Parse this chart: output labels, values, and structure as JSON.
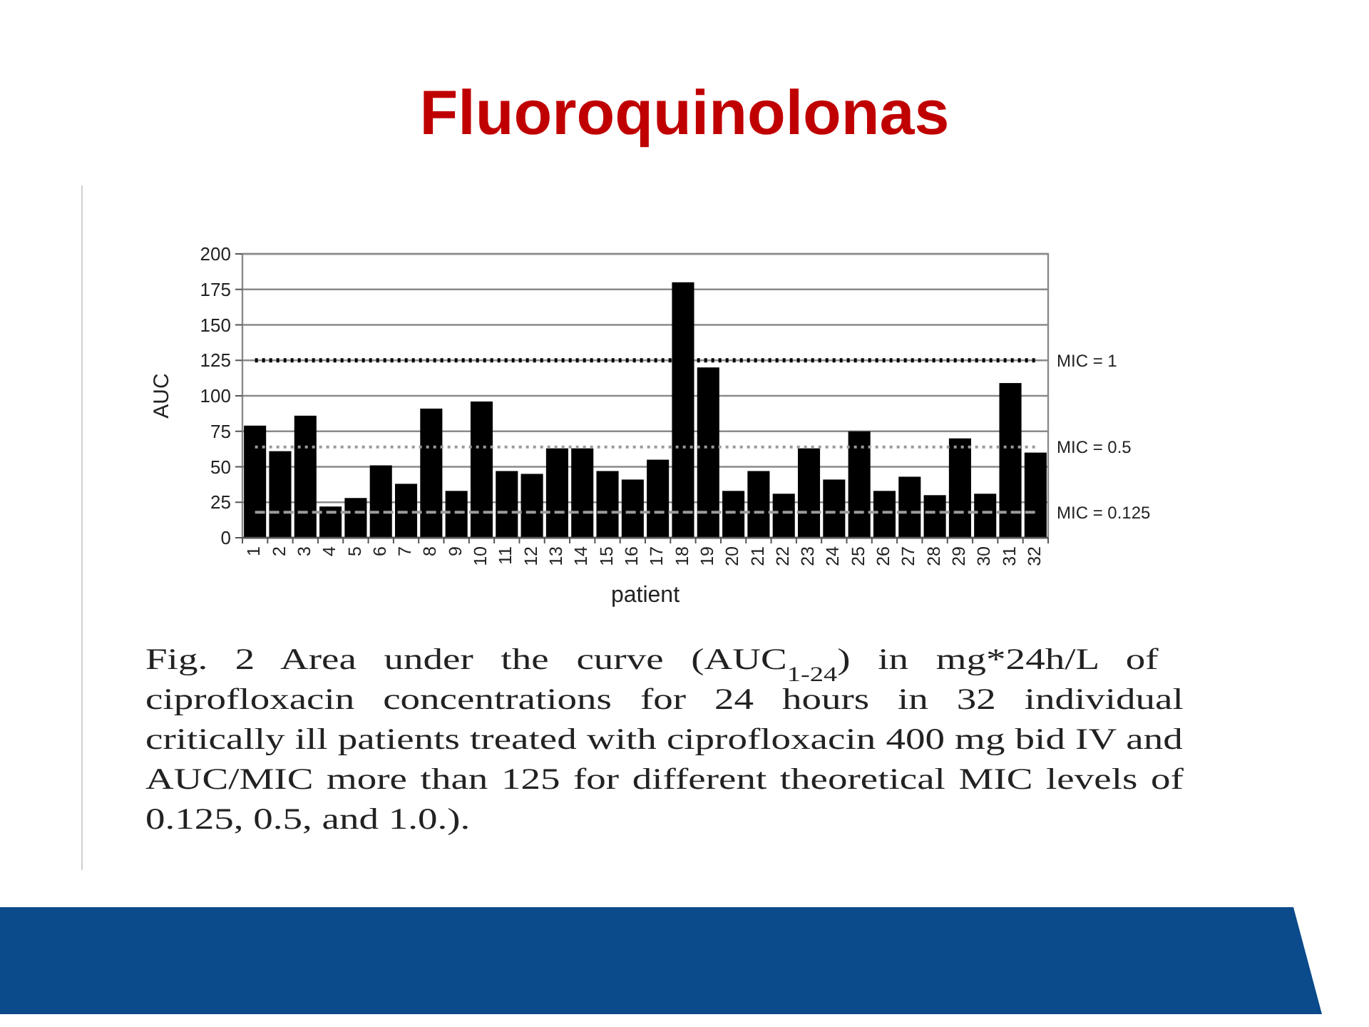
{
  "chart_data": {
    "type": "bar",
    "title": "Fluoroquinolonas",
    "xlabel": "patient",
    "ylabel": "AUC",
    "categories": [
      "1",
      "2",
      "3",
      "4",
      "5",
      "6",
      "7",
      "8",
      "9",
      "10",
      "11",
      "12",
      "13",
      "14",
      "15",
      "16",
      "17",
      "18",
      "19",
      "20",
      "21",
      "22",
      "23",
      "24",
      "25",
      "26",
      "27",
      "28",
      "29",
      "30",
      "31",
      "32"
    ],
    "series": [
      {
        "color": "#000000",
        "values": [
          79,
          61,
          86,
          22,
          28,
          51,
          38,
          91,
          33,
          96,
          47,
          45,
          63,
          63,
          47,
          41,
          55,
          180,
          120,
          33,
          47,
          31,
          63,
          41,
          75,
          33,
          43,
          30,
          70,
          31,
          109,
          60
        ]
      },
      {
        "type": "line",
        "name": "MIC = 1",
        "color": "#000000",
        "line_style": "dotted",
        "values": [
          125,
          125,
          125,
          125,
          125,
          125,
          125,
          125,
          125,
          125,
          125,
          125,
          125,
          125,
          125,
          125,
          125,
          125,
          125,
          125,
          125,
          125,
          125,
          125,
          125,
          125,
          125,
          125,
          125,
          125,
          125,
          125
        ]
      },
      {
        "type": "line",
        "name": "MIC = 0.5",
        "color": "#9a9a9a",
        "line_style": "dotted",
        "values": [
          64,
          64,
          64,
          64,
          64,
          64,
          64,
          64,
          64,
          64,
          64,
          64,
          64,
          64,
          64,
          64,
          64,
          64,
          64,
          64,
          64,
          64,
          64,
          64,
          64,
          64,
          64,
          64,
          64,
          64,
          64,
          64
        ]
      },
      {
        "type": "line",
        "name": "MIC = 0.125",
        "color": "#9a9a9a",
        "line_style": "dashed",
        "values": [
          18,
          18,
          18,
          18,
          18,
          18,
          18,
          18,
          18,
          18,
          18,
          18,
          18,
          18,
          18,
          18,
          18,
          18,
          18,
          18,
          18,
          18,
          18,
          18,
          18,
          18,
          18,
          18,
          18,
          18,
          18,
          18
        ]
      }
    ],
    "ylim": [
      0,
      200
    ],
    "yticks": [
      0,
      25,
      50,
      75,
      100,
      125,
      150,
      175,
      200
    ],
    "grid": "y",
    "annotations": [
      "Fig. 2 Area under the curve (AUC$_{1-24}$) in mg*24h/L of ciprofloxacin concentrations for 24 hours in 32 individual critically ill patients treated with ciprofloxacin 400 mg bid IV and AUC/MIC more than 125 for different theoretical MIC levels of 0.125, 0.5, and 1.0.)."
    ]
  }
}
